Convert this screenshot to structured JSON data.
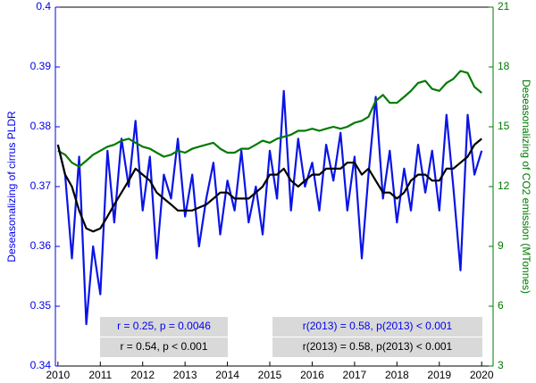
{
  "chart_data": {
    "type": "line",
    "ylabel": "Deseasonalizing of cirrus PLDR",
    "y2label": "Deseasonalizing of CO2 emission (MTonnes)",
    "xlim": [
      2009.94,
      2020.27
    ],
    "xticks": [
      2010,
      2011,
      2012,
      2013,
      2014,
      2015,
      2016,
      2017,
      2018,
      2019,
      2020
    ],
    "ylim": [
      0.34,
      0.4
    ],
    "yticks": [
      0.34,
      0.35,
      0.36,
      0.37,
      0.38,
      0.39,
      0.4
    ],
    "y2lim": [
      3,
      21
    ],
    "y2ticks": [
      3,
      6,
      9,
      12,
      15,
      18,
      21
    ],
    "ycolor": "#0000ee",
    "y2color": "#007a00",
    "x": [
      2010,
      2010.17,
      2010.33,
      2010.5,
      2010.67,
      2010.83,
      2011,
      2011.17,
      2011.33,
      2011.5,
      2011.67,
      2011.83,
      2012,
      2012.17,
      2012.33,
      2012.5,
      2012.67,
      2012.83,
      2013,
      2013.17,
      2013.33,
      2013.5,
      2013.67,
      2013.83,
      2014,
      2014.17,
      2014.33,
      2014.5,
      2014.67,
      2014.83,
      2015,
      2015.17,
      2015.33,
      2015.5,
      2015.67,
      2015.83,
      2016,
      2016.17,
      2016.33,
      2016.5,
      2016.67,
      2016.83,
      2017,
      2017.17,
      2017.33,
      2017.5,
      2017.67,
      2017.83,
      2018,
      2018.17,
      2018.33,
      2018.5,
      2018.67,
      2018.83,
      2019,
      2019.17,
      2019.33,
      2019.5,
      2019.67,
      2019.83,
      2020
    ],
    "series": [
      {
        "color": "#0a14e6",
        "values": [
          0.377,
          0.372,
          0.358,
          0.375,
          0.347,
          0.36,
          0.352,
          0.376,
          0.364,
          0.378,
          0.37,
          0.381,
          0.366,
          0.375,
          0.358,
          0.372,
          0.368,
          0.378,
          0.365,
          0.372,
          0.36,
          0.368,
          0.374,
          0.362,
          0.371,
          0.366,
          0.376,
          0.364,
          0.37,
          0.362,
          0.376,
          0.368,
          0.386,
          0.366,
          0.378,
          0.37,
          0.374,
          0.366,
          0.377,
          0.371,
          0.379,
          0.366,
          0.375,
          0.358,
          0.372,
          0.385,
          0.368,
          0.376,
          0.364,
          0.373,
          0.366,
          0.377,
          0.369,
          0.376,
          0.366,
          0.382,
          0.37,
          0.356,
          0.382,
          0.372,
          0.376
        ]
      },
      {
        "color": "#007a00",
        "axis": "y2",
        "values": [
          13.8,
          13.6,
          13.2,
          13.0,
          13.3,
          13.6,
          13.8,
          14.0,
          14.1,
          14.3,
          14.4,
          14.2,
          14.0,
          13.9,
          13.7,
          13.5,
          13.6,
          13.8,
          13.7,
          13.9,
          14.0,
          14.1,
          14.2,
          13.9,
          13.7,
          13.7,
          13.9,
          13.9,
          14.1,
          14.3,
          14.2,
          14.4,
          14.5,
          14.6,
          14.8,
          14.8,
          14.9,
          14.8,
          14.9,
          15.0,
          14.9,
          15.0,
          15.2,
          15.3,
          15.5,
          16.3,
          16.6,
          16.2,
          16.2,
          16.5,
          16.8,
          17.2,
          17.3,
          16.9,
          16.8,
          17.2,
          17.4,
          17.8,
          17.7,
          17.0,
          16.7
        ]
      },
      {
        "color": "#000000",
        "values": [
          0.377,
          0.372,
          0.37,
          0.366,
          0.363,
          0.3625,
          0.363,
          0.365,
          0.367,
          0.369,
          0.371,
          0.373,
          0.372,
          0.371,
          0.369,
          0.368,
          0.367,
          0.366,
          0.366,
          0.366,
          0.3665,
          0.367,
          0.368,
          0.369,
          0.369,
          0.368,
          0.368,
          0.368,
          0.369,
          0.37,
          0.372,
          0.372,
          0.373,
          0.371,
          0.37,
          0.371,
          0.372,
          0.372,
          0.373,
          0.373,
          0.373,
          0.374,
          0.374,
          0.372,
          0.373,
          0.371,
          0.369,
          0.369,
          0.368,
          0.369,
          0.371,
          0.372,
          0.372,
          0.371,
          0.371,
          0.373,
          0.373,
          0.374,
          0.375,
          0.377,
          0.378
        ]
      }
    ],
    "annotations": [
      {
        "text": "r = 0.25, p = 0.0046",
        "color": "#0000ee"
      },
      {
        "text": "r = 0.54, p < 0.001",
        "color": "#000000"
      },
      {
        "text": "r(2013) = 0.58, p(2013) < 0.001",
        "color": "#0000ee"
      },
      {
        "text": "r(2013) = 0.58, p(2013) < 0.001",
        "color": "#000000"
      }
    ]
  }
}
